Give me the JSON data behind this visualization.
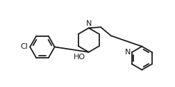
{
  "bg": "#ffffff",
  "lc": "#1a1a1a",
  "lw": 1.3,
  "fs": 8.0,
  "xlim": [
    0.0,
    10.0
  ],
  "ylim": [
    0.5,
    5.5
  ]
}
